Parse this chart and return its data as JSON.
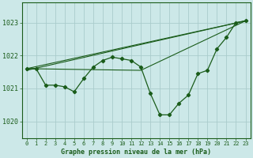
{
  "title": "Graphe pression niveau de la mer (hPa)",
  "background_color": "#cce8e8",
  "grid_color": "#aacccc",
  "line_color": "#1a5c1a",
  "xlim": [
    -0.5,
    23.5
  ],
  "ylim": [
    1019.5,
    1023.6
  ],
  "yticks": [
    1020,
    1021,
    1022,
    1023
  ],
  "xticks": [
    0,
    1,
    2,
    3,
    4,
    5,
    6,
    7,
    8,
    9,
    10,
    11,
    12,
    13,
    14,
    15,
    16,
    17,
    18,
    19,
    20,
    21,
    22,
    23
  ],
  "main_x": [
    0,
    1,
    2,
    3,
    4,
    5,
    6,
    7,
    8,
    9,
    10,
    11,
    12,
    13,
    14,
    15,
    16,
    17,
    18,
    19,
    20,
    21,
    22,
    23
  ],
  "main_y": [
    1021.6,
    1021.6,
    1021.1,
    1021.1,
    1021.05,
    1020.9,
    1021.3,
    1021.65,
    1021.85,
    1021.95,
    1021.9,
    1021.85,
    1021.65,
    1020.85,
    1020.2,
    1020.2,
    1020.55,
    1020.8,
    1021.45,
    1021.55,
    1022.2,
    1022.55,
    1023.0,
    1023.05
  ],
  "line2_x": [
    0,
    23
  ],
  "line2_y": [
    1021.6,
    1023.05
  ],
  "line3_x": [
    0,
    23
  ],
  "line3_y": [
    1021.55,
    1023.05
  ],
  "line4_x": [
    0,
    12,
    23
  ],
  "line4_y": [
    1021.6,
    1021.55,
    1023.05
  ]
}
